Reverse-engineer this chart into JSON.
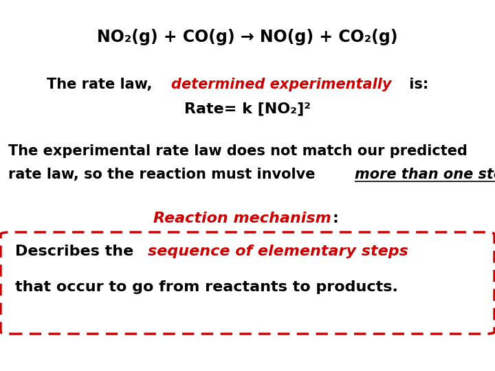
{
  "background_color": "#ffffff",
  "red_color": "#cc0000",
  "black_color": "#000000",
  "title": "NO₂(g) + CO(g) → NO(g) + CO₂(g)",
  "line2_b1": "The rate law, ",
  "line2_r": "determined experimentally",
  "line2_b2": " is:",
  "line3": "Rate= k [NO₂]²",
  "para1": "The experimental rate law does not match our predicted",
  "para2_b1": "rate law, so the reaction must involve ",
  "para2_iu": "more than one step",
  "para2_b2": ".",
  "rm_red": "Reaction mechanism",
  "rm_black": ":",
  "box1_b": "Describes the ",
  "box1_r": "sequence of elementary steps",
  "box2": "that occur to go from reactants to products."
}
